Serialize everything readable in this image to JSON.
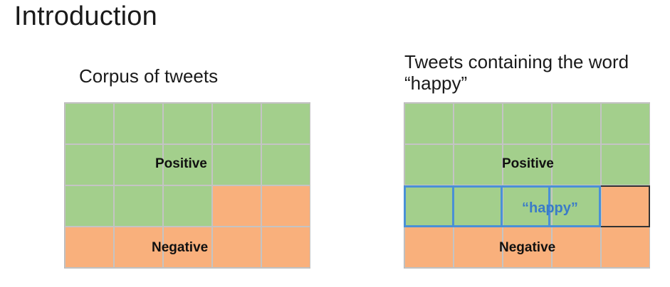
{
  "slide": {
    "title": "Introduction"
  },
  "left_panel": {
    "title": "Corpus of tweets",
    "positive_label": "Positive",
    "negative_label": "Negative",
    "cells": [
      "pos",
      "pos",
      "pos",
      "pos",
      "pos",
      "pos",
      "pos",
      "pos",
      "pos",
      "pos",
      "pos",
      "pos",
      "pos",
      "neg",
      "neg",
      "neg",
      "neg",
      "neg",
      "neg",
      "neg"
    ]
  },
  "right_panel": {
    "title": "Tweets containing the word “happy”",
    "positive_label": "Positive",
    "negative_label": "Negative",
    "highlight_label": "“happy”",
    "cells": [
      "pos",
      "pos",
      "pos",
      "pos",
      "pos",
      "pos",
      "pos",
      "pos",
      "pos",
      "pos",
      "pos",
      "pos",
      "pos",
      "pos",
      "neg",
      "neg",
      "neg",
      "neg",
      "neg",
      "neg"
    ]
  },
  "colors": {
    "positive": "#a3cf8c",
    "negative": "#f9b07c",
    "highlight": "#4a90d6"
  }
}
